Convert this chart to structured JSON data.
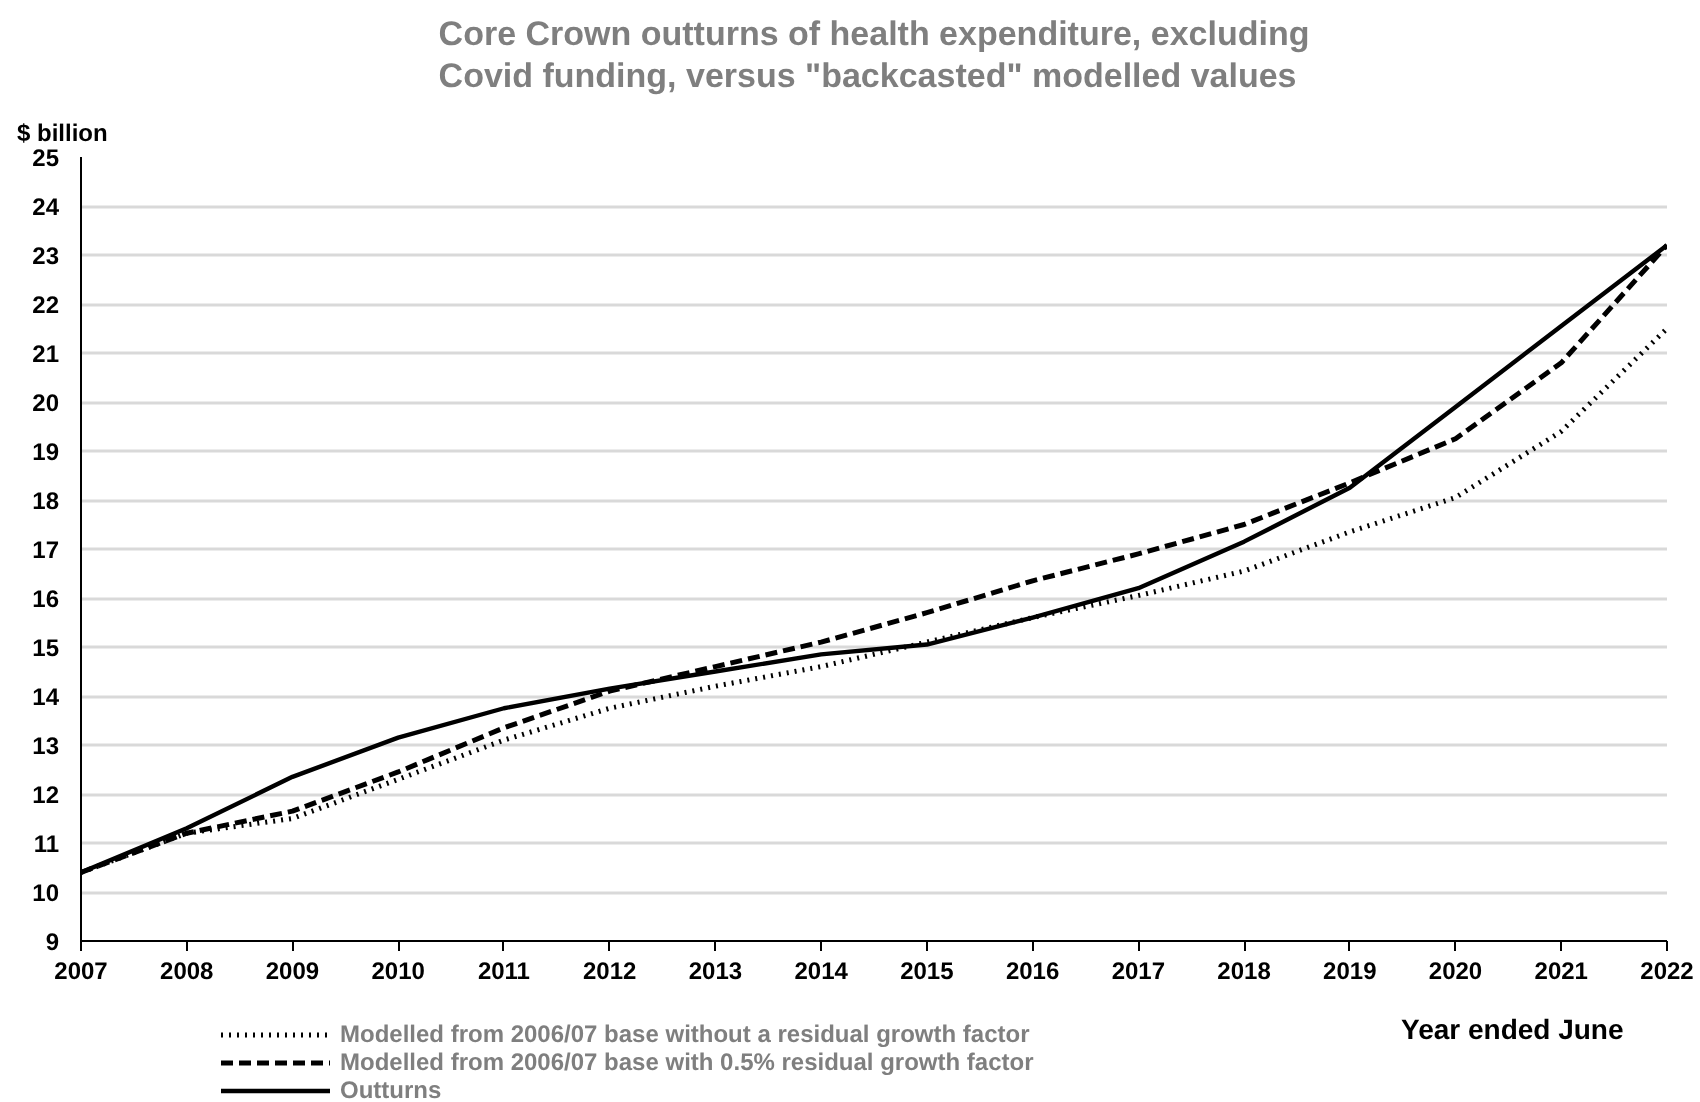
{
  "chart_data": {
    "type": "line",
    "title": "Core Crown outturns of health expenditure, excluding Covid funding, versus \"backcasted\" modelled values",
    "ylabel": "$ billion",
    "xlabel": "Year ended June",
    "x": [
      2007,
      2008,
      2009,
      2010,
      2011,
      2012,
      2013,
      2014,
      2015,
      2016,
      2017,
      2018,
      2019,
      2020,
      2021,
      2022
    ],
    "series": [
      {
        "name": "Modelled from 2006/07 base without a residual growth factor",
        "color": "#000000",
        "line_style": "dotted",
        "values": [
          10.4,
          11.2,
          11.5,
          12.3,
          13.1,
          13.75,
          14.2,
          14.6,
          15.1,
          15.6,
          16.05,
          16.55,
          17.35,
          18.05,
          19.4,
          21.5
        ]
      },
      {
        "name": "Modelled from 2006/07 base with 0.5% residual growth factor",
        "color": "#000000",
        "line_style": "dashed",
        "values": [
          10.4,
          11.2,
          11.65,
          12.45,
          13.35,
          14.1,
          14.6,
          15.1,
          15.7,
          16.35,
          16.9,
          17.5,
          18.35,
          19.25,
          20.8,
          23.2
        ]
      },
      {
        "name": "Outturns",
        "color": "#000000",
        "line_style": "solid",
        "values": [
          10.4,
          11.3,
          12.35,
          13.15,
          13.75,
          14.15,
          14.5,
          14.85,
          15.05,
          15.6,
          16.2,
          17.15,
          18.25,
          19.9,
          21.55,
          23.2
        ]
      }
    ],
    "xlim": [
      2007,
      2022
    ],
    "xticks": [
      2007,
      2008,
      2009,
      2010,
      2011,
      2012,
      2013,
      2014,
      2015,
      2016,
      2017,
      2018,
      2019,
      2020,
      2021,
      2022
    ],
    "ylim": [
      9,
      25
    ],
    "yticks": [
      9,
      10,
      11,
      12,
      13,
      14,
      15,
      16,
      17,
      18,
      19,
      20,
      21,
      22,
      23,
      24,
      25
    ],
    "grid": "y",
    "legend": "bottom left",
    "marker": "none"
  }
}
